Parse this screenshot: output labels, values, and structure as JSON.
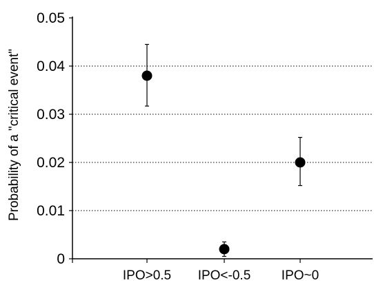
{
  "chart_data": {
    "type": "scatter",
    "title": "",
    "xlabel": "",
    "ylabel": "Probability of  a \"critical event\"",
    "categories": [
      "IPO>0.5",
      "IPO<-0.5",
      "IPO~0"
    ],
    "series": [
      {
        "values": [
          0.038,
          0.002,
          0.02
        ],
        "error_low": [
          0.0317,
          0.0005,
          0.0152
        ],
        "error_high": [
          0.0445,
          0.0035,
          0.0252
        ],
        "marker": "circle",
        "color": "#000000"
      }
    ],
    "ylim": [
      0,
      0.05
    ],
    "yticks": [
      0,
      0.01,
      0.02,
      0.03,
      0.04,
      0.05
    ],
    "ytick_labels": [
      "0",
      "0.01",
      "0.02",
      "0.03",
      "0.04",
      "0.05"
    ],
    "grid": "horizontal dotted",
    "legend": "none"
  }
}
